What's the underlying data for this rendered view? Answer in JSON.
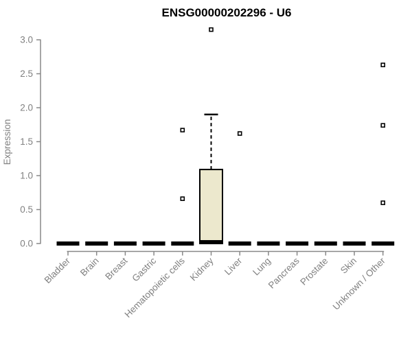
{
  "page": {
    "background": "#ffffff"
  },
  "chart_data": {
    "type": "boxplot",
    "title": "ENSG00000202296 - U6",
    "ylabel": "Expression",
    "xlabel": "",
    "ylim": [
      0.0,
      3.2
    ],
    "yticks": [
      0.0,
      0.5,
      1.0,
      1.5,
      2.0,
      2.5,
      3.0
    ],
    "grid": false,
    "legend": "none",
    "categories": [
      "Bladder",
      "Brain",
      "Breast",
      "Gastric",
      "Hematopoietic cells",
      "Kidney",
      "Liver",
      "Lung",
      "Pancreas",
      "Prostate",
      "Skin",
      "Unknown / Other"
    ],
    "boxes": [
      {
        "category": "Bladder",
        "min": 0,
        "q1": 0,
        "median": 0,
        "q3": 0,
        "max": 0,
        "outliers": []
      },
      {
        "category": "Brain",
        "min": 0,
        "q1": 0,
        "median": 0,
        "q3": 0,
        "max": 0,
        "outliers": []
      },
      {
        "category": "Breast",
        "min": 0,
        "q1": 0,
        "median": 0,
        "q3": 0,
        "max": 0,
        "outliers": []
      },
      {
        "category": "Gastric",
        "min": 0,
        "q1": 0,
        "median": 0,
        "q3": 0,
        "max": 0,
        "outliers": []
      },
      {
        "category": "Hematopoietic cells",
        "min": 0,
        "q1": 0,
        "median": 0,
        "q3": 0,
        "max": 0,
        "outliers": [
          1.67,
          0.66
        ]
      },
      {
        "category": "Kidney",
        "min": 0,
        "q1": 0,
        "median": 0.02,
        "q3": 1.09,
        "max": 1.9,
        "outliers": [
          3.15
        ]
      },
      {
        "category": "Liver",
        "min": 0,
        "q1": 0,
        "median": 0,
        "q3": 0,
        "max": 0,
        "outliers": [
          1.62
        ]
      },
      {
        "category": "Lung",
        "min": 0,
        "q1": 0,
        "median": 0,
        "q3": 0,
        "max": 0,
        "outliers": []
      },
      {
        "category": "Pancreas",
        "min": 0,
        "q1": 0,
        "median": 0,
        "q3": 0,
        "max": 0,
        "outliers": []
      },
      {
        "category": "Prostate",
        "min": 0,
        "q1": 0,
        "median": 0,
        "q3": 0,
        "max": 0,
        "outliers": []
      },
      {
        "category": "Skin",
        "min": 0,
        "q1": 0,
        "median": 0,
        "q3": 0,
        "max": 0,
        "outliers": []
      },
      {
        "category": "Unknown / Other",
        "min": 0,
        "q1": 0,
        "median": 0,
        "q3": 0,
        "max": 0,
        "outliers": [
          2.63,
          1.74,
          0.6
        ]
      }
    ],
    "colors": {
      "box_fill": "#ECE8CD",
      "box_stroke": "#000000",
      "median": "#000000",
      "outlier_fill": "#FFFFFF",
      "outlier_stroke": "#000000",
      "axis_line": "#888888",
      "tick_label": "#808080",
      "title": "#000000"
    }
  }
}
